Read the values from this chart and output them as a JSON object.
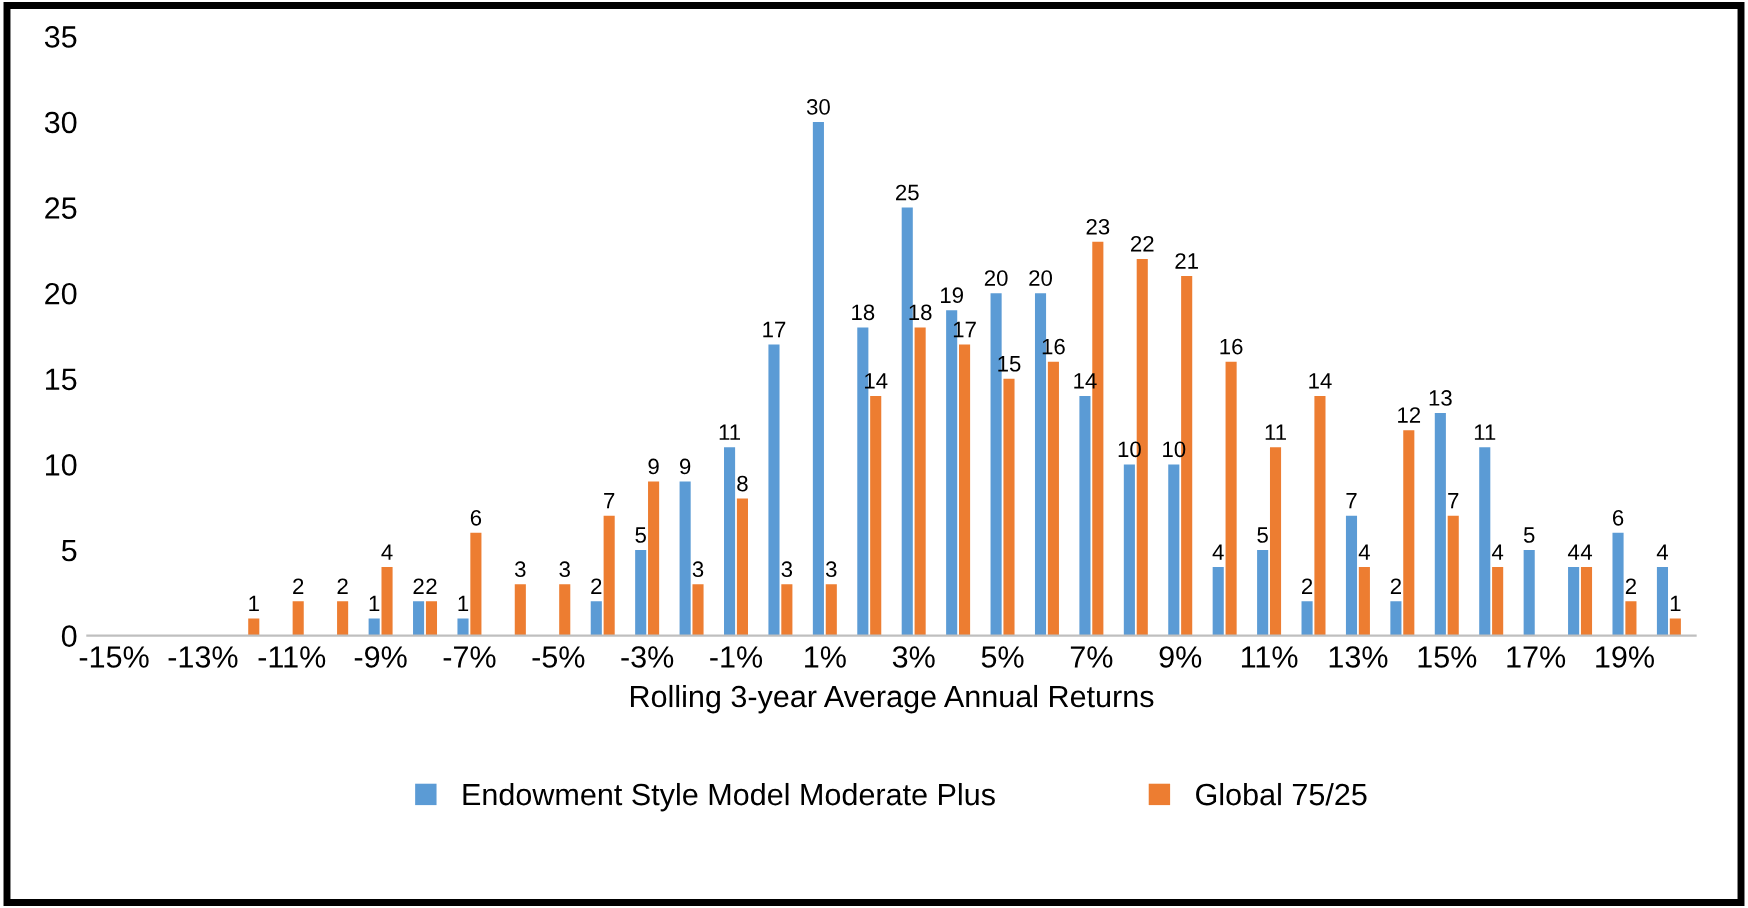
{
  "chart_data": {
    "type": "bar",
    "xlabel": "Rolling 3-year Average Annual Returns",
    "categories": [
      "-15%",
      null,
      "-13%",
      null,
      "-11%",
      null,
      "-9%",
      null,
      "-7%",
      null,
      "-5%",
      null,
      "-3%",
      null,
      "-1%",
      null,
      "1%",
      null,
      "3%",
      null,
      "5%",
      null,
      "7%",
      null,
      "9%",
      null,
      "11%",
      null,
      "13%",
      null,
      "15%",
      null,
      "17%",
      null,
      "19%",
      null
    ],
    "series": [
      {
        "name": "Endowment Style Model Moderate Plus",
        "color": "#5b9bd5",
        "values": [
          null,
          null,
          null,
          null,
          null,
          null,
          1,
          2,
          1,
          null,
          null,
          2,
          5,
          9,
          11,
          17,
          30,
          18,
          25,
          19,
          20,
          20,
          14,
          10,
          10,
          4,
          5,
          2,
          7,
          2,
          13,
          11,
          5,
          4,
          6,
          4
        ]
      },
      {
        "name": "Global 75/25",
        "color": "#ed7d31",
        "values": [
          null,
          null,
          null,
          1,
          2,
          2,
          4,
          2,
          6,
          3,
          3,
          7,
          9,
          3,
          8,
          3,
          3,
          14,
          18,
          17,
          15,
          16,
          23,
          22,
          21,
          16,
          11,
          14,
          4,
          12,
          7,
          4,
          null,
          4,
          2,
          1
        ]
      }
    ],
    "ylim": [
      0,
      35
    ],
    "yticks": [
      0,
      5,
      10,
      15,
      20,
      25,
      30,
      35
    ],
    "grid": false,
    "legend": "bottom",
    "data_labels": true
  }
}
